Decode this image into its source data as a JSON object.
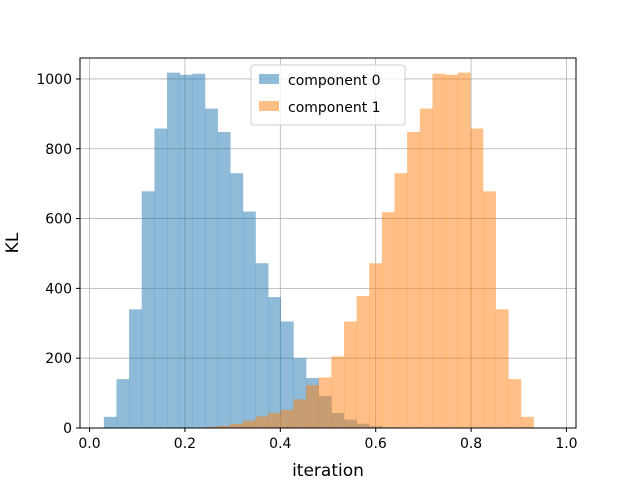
{
  "chart_data": {
    "type": "bar",
    "subtype": "histogram",
    "title": "",
    "xlabel": "iteration",
    "ylabel": "KL",
    "xlim": [
      -0.02,
      1.02
    ],
    "ylim": [
      0,
      1060
    ],
    "xticks": [
      0.0,
      0.2,
      0.4,
      0.6,
      0.8,
      1.0
    ],
    "xtick_labels": [
      "0.0",
      "0.2",
      "0.4",
      "0.6",
      "0.8",
      "1.0"
    ],
    "yticks": [
      0,
      200,
      400,
      600,
      800,
      1000
    ],
    "ytick_labels": [
      "0",
      "200",
      "400",
      "600",
      "800",
      "1000"
    ],
    "grid": true,
    "legend_position": "top-center",
    "bin_edges": [
      0.03,
      0.0565,
      0.083,
      0.1095,
      0.136,
      0.1625,
      0.189,
      0.2155,
      0.242,
      0.2685,
      0.295,
      0.3215,
      0.348,
      0.3745,
      0.401,
      0.4275,
      0.454,
      0.4805,
      0.507,
      0.5335,
      0.56,
      0.5865,
      0.613,
      0.6395,
      0.666,
      0.6925,
      0.719,
      0.7455,
      0.772,
      0.7985,
      0.825,
      0.8515,
      0.878,
      0.9045,
      0.931,
      0.9575,
      0.984
    ],
    "series": [
      {
        "name": "component 0",
        "color": "#1f77b4",
        "alpha": 0.5,
        "values": [
          32,
          140,
          340,
          678,
          858,
          1018,
          1012,
          1015,
          915,
          848,
          730,
          620,
          472,
          375,
          305,
          200,
          143,
          92,
          43,
          24,
          12,
          5,
          2,
          1,
          0,
          0,
          0,
          0,
          0,
          0,
          0,
          0,
          0,
          0,
          0,
          0
        ]
      },
      {
        "name": "component 1",
        "color": "#ff7f0e",
        "alpha": 0.5,
        "values": [
          0,
          0,
          0,
          0,
          0,
          0,
          0,
          1,
          3,
          6,
          12,
          21,
          33,
          43,
          52,
          82,
          123,
          145,
          205,
          305,
          378,
          472,
          618,
          730,
          848,
          915,
          1015,
          1012,
          1018,
          858,
          678,
          340,
          140,
          32,
          0,
          0
        ]
      }
    ]
  }
}
